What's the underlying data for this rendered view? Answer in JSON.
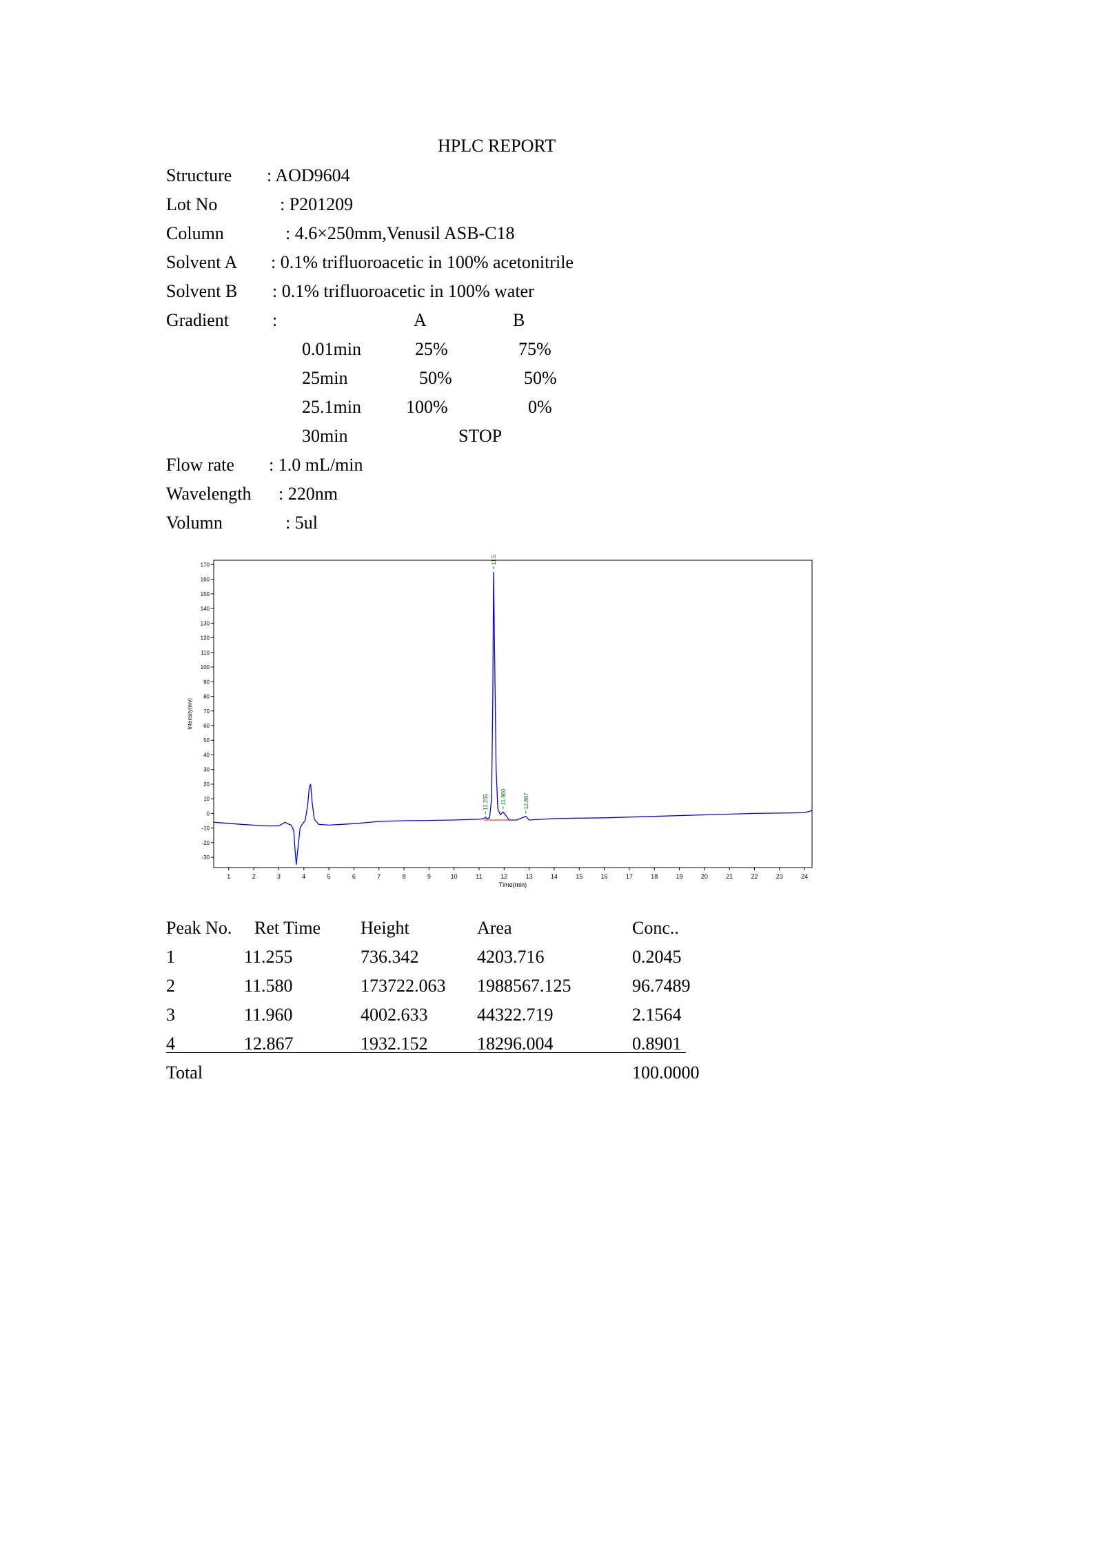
{
  "report": {
    "title": "HPLC REPORT",
    "structure": {
      "label": "Structure",
      "value": ": AOD9604"
    },
    "lot": {
      "label": "Lot No",
      "value": ": P201209"
    },
    "column": {
      "label": "Column",
      "value": ": 4.6×250mm,Venusil ASB-C18"
    },
    "solvent_a": {
      "label": "Solvent A",
      "value": ": 0.1% trifluoroacetic in 100% acetonitrile"
    },
    "solvent_b": {
      "label": "Solvent B",
      "value": ": 0.1% trifluoroacetic in 100% water"
    },
    "gradient": {
      "label": "Gradient",
      "colon": ":",
      "col_a": "A",
      "col_b": "B",
      "rows": [
        {
          "time": "0.01min",
          "a": "25%",
          "b": "75%"
        },
        {
          "time": "25min",
          "a": "50%",
          "b": "50%"
        },
        {
          "time": "25.1min",
          "a": "100%",
          "b": "0%"
        }
      ],
      "stop_time": "30min",
      "stop_text": "STOP"
    },
    "flow_rate": {
      "label": "Flow rate",
      "value": ": 1.0 mL/min"
    },
    "wavelength": {
      "label": "Wavelength",
      "value": ": 220nm"
    },
    "volume": {
      "label": "Volumn",
      "value": ": 5ul"
    }
  },
  "chart_data": {
    "type": "line",
    "xlabel": "Time(min)",
    "ylabel": "Intensity(mv)",
    "xlim": [
      0.4,
      24.3
    ],
    "ylim": [
      -37,
      173
    ],
    "x_ticks": [
      1,
      2,
      3,
      4,
      5,
      6,
      7,
      8,
      9,
      10,
      11,
      12,
      13,
      14,
      15,
      16,
      17,
      18,
      19,
      20,
      21,
      22,
      23,
      24
    ],
    "y_ticks": [
      -30,
      -20,
      -10,
      0,
      10,
      20,
      30,
      40,
      50,
      60,
      70,
      80,
      90,
      100,
      110,
      120,
      130,
      140,
      150,
      160,
      170
    ],
    "grid": false,
    "line_color": "#0000ff",
    "baseline_color": "#ff0000",
    "label_color": "#008000",
    "trace": [
      [
        0.4,
        -6
      ],
      [
        1.5,
        -7.5
      ],
      [
        2.5,
        -8.5
      ],
      [
        3.0,
        -8.5
      ],
      [
        3.15,
        -7
      ],
      [
        3.25,
        -6
      ],
      [
        3.35,
        -7
      ],
      [
        3.5,
        -8
      ],
      [
        3.6,
        -12
      ],
      [
        3.65,
        -25
      ],
      [
        3.7,
        -35
      ],
      [
        3.75,
        -26
      ],
      [
        3.85,
        -10
      ],
      [
        3.95,
        -7
      ],
      [
        4.05,
        -5
      ],
      [
        4.15,
        5
      ],
      [
        4.22,
        18
      ],
      [
        4.27,
        20
      ],
      [
        4.33,
        8
      ],
      [
        4.42,
        -4
      ],
      [
        4.6,
        -7.5
      ],
      [
        5.0,
        -8
      ],
      [
        6.0,
        -7
      ],
      [
        7.0,
        -5.5
      ],
      [
        8.0,
        -5
      ],
      [
        9.0,
        -4.8
      ],
      [
        10.0,
        -4.5
      ],
      [
        11.0,
        -4
      ],
      [
        11.2,
        -3.5
      ],
      [
        11.255,
        -2.5
      ],
      [
        11.3,
        -3.5
      ],
      [
        11.42,
        -3
      ],
      [
        11.5,
        10
      ],
      [
        11.55,
        80
      ],
      [
        11.58,
        165
      ],
      [
        11.62,
        110
      ],
      [
        11.68,
        30
      ],
      [
        11.75,
        3
      ],
      [
        11.85,
        -1
      ],
      [
        11.96,
        1
      ],
      [
        12.05,
        -1
      ],
      [
        12.2,
        -4.5
      ],
      [
        12.5,
        -4.5
      ],
      [
        12.867,
        -2
      ],
      [
        13.0,
        -4.5
      ],
      [
        14.0,
        -3.5
      ],
      [
        16.0,
        -3
      ],
      [
        18.0,
        -2
      ],
      [
        20.0,
        -1
      ],
      [
        22.0,
        0
      ],
      [
        24.0,
        0.5
      ],
      [
        24.3,
        2
      ]
    ],
    "baselines": [
      [
        11.2,
        12.3,
        -4.5
      ]
    ],
    "peaks": [
      {
        "rt": 11.255,
        "label": "11.255",
        "y": -2.5
      },
      {
        "rt": 11.58,
        "label": "11.580",
        "y": 165
      },
      {
        "rt": 11.96,
        "label": "11.960",
        "y": 1
      },
      {
        "rt": 12.867,
        "label": "12.867",
        "y": -2
      }
    ]
  },
  "table": {
    "headers": [
      "Peak No.",
      "Ret Time",
      "Height",
      "Area",
      "Conc.."
    ],
    "rows": [
      [
        "1",
        "11.255",
        "736.342",
        "4203.716",
        "0.2045"
      ],
      [
        "2",
        "11.580",
        "173722.063",
        "1988567.125",
        "96.7489"
      ],
      [
        "3",
        "11.960",
        "4002.633",
        "44322.719",
        "2.1564"
      ],
      [
        "4",
        "12.867",
        "1932.152",
        "18296.004",
        "0.8901"
      ]
    ],
    "total_label": "Total",
    "total_value": "100.0000"
  }
}
